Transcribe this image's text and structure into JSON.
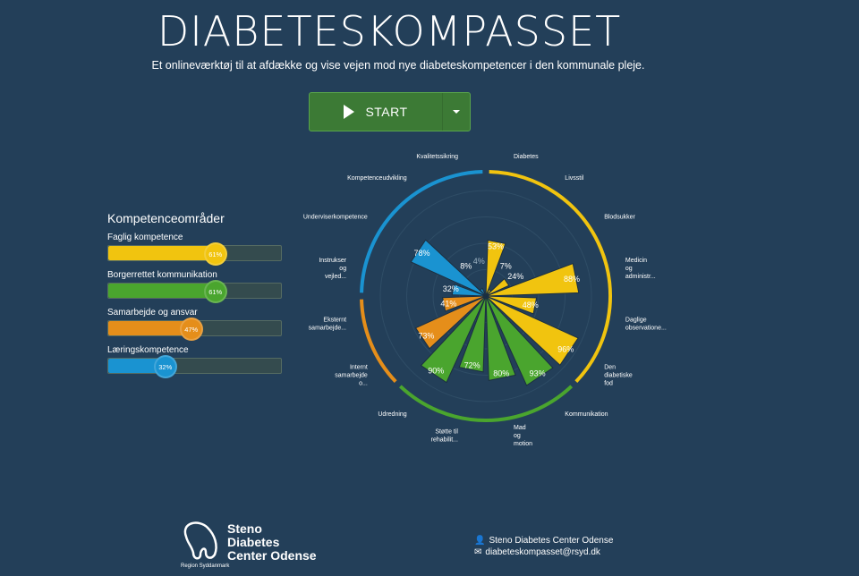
{
  "header": {
    "title": "DIABETESKOMPASSET",
    "subtitle": "Et onlineværktøj til at afdække og vise vejen mod nye diabeteskompetencer i den kommunale pleje.",
    "start_label": "START"
  },
  "panel": {
    "title": "Kompetenceområder",
    "areas": [
      {
        "label": "Faglig kompetence",
        "value": 61,
        "value_label": "61%",
        "color": "#f1c40f"
      },
      {
        "label": "Borgerrettet kommunikation",
        "value": 61,
        "value_label": "61%",
        "color": "#4aa52e"
      },
      {
        "label": "Samarbejde og ansvar",
        "value": 47,
        "value_label": "47%",
        "color": "#e58e1a"
      },
      {
        "label": "Læringskompetence",
        "value": 32,
        "value_label": "32%",
        "color": "#1a93d1"
      }
    ]
  },
  "chart_data": {
    "type": "polar-bar",
    "range": [
      0,
      100
    ],
    "categories": [
      {
        "label": "Diabetes",
        "value": 53,
        "group": 0
      },
      {
        "label": "Livsstil",
        "value": 7,
        "group": 0
      },
      {
        "label": "Blodsukker",
        "value": 24,
        "group": 0
      },
      {
        "label": "Medicin og administr...",
        "value": 88,
        "group": 0
      },
      {
        "label": "Daglige observatione...",
        "value": 48,
        "group": 0
      },
      {
        "label": "Den diabetiske fod",
        "value": 96,
        "group": 0
      },
      {
        "label": "Kommunikation",
        "value": 93,
        "group": 1
      },
      {
        "label": "Mad og motion",
        "value": 80,
        "group": 1
      },
      {
        "label": "Støtte til rehabilit...",
        "value": 72,
        "group": 1
      },
      {
        "label": "Udredning",
        "value": 90,
        "group": 1
      },
      {
        "label": "Internt samarbejde o...",
        "value": 73,
        "group": 2
      },
      {
        "label": "Eksternt samarbejde...",
        "value": 41,
        "group": 2
      },
      {
        "label": "Instrukser og vejled...",
        "value": 32,
        "group": 3
      },
      {
        "label": "Underviserkompetence",
        "value": 78,
        "group": 3
      },
      {
        "label": "Kompetenceudvikling",
        "value": 8,
        "group": 3
      },
      {
        "label": "Kvalitetssikring",
        "value": 4,
        "group": 3
      }
    ],
    "group_colors": [
      "#f1c40f",
      "#4aa52e",
      "#e58e1a",
      "#1a93d1"
    ]
  },
  "footer": {
    "logo_lines": [
      "Steno",
      "Diabetes",
      "Center Odense"
    ],
    "region": "Region Syddanmark",
    "contact_name": "Steno Diabetes Center Odense",
    "contact_email": "diabeteskompasset@rsyd.dk"
  }
}
